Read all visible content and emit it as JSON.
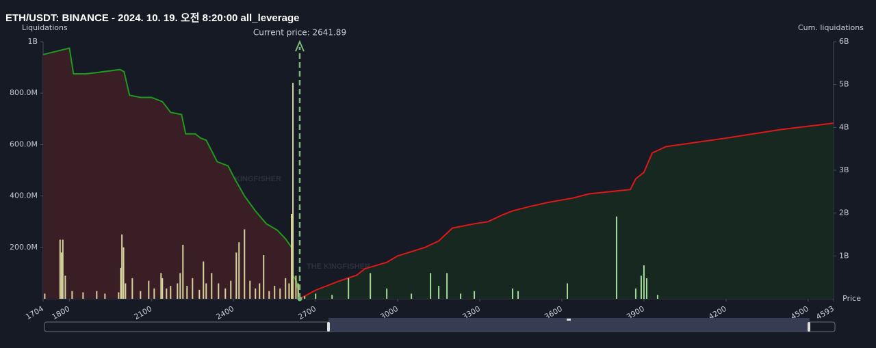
{
  "chart_data": {
    "type": "bar",
    "title": "ETH/USDT: BINANCE - 2024. 10. 19. 오전 8:20:00 all_leverage",
    "y_label": "Liquidations",
    "y2_label": "Cum. liquidations",
    "x_label": "Price",
    "annotation": "Current price: 2641.89",
    "current_price": 2641.89,
    "watermark": "THE KINGFISHER",
    "watermark_suffix": ".io",
    "xlim": [
      1704,
      4593
    ],
    "xticks": [
      1704,
      1800,
      2100,
      2400,
      2700,
      3000,
      3300,
      3600,
      3900,
      4200,
      4500,
      4593
    ],
    "ylim": [
      0,
      1000000000
    ],
    "yticks": [
      {
        "value": 200000000,
        "label": "200.0M"
      },
      {
        "value": 400000000,
        "label": "400.0M"
      },
      {
        "value": 600000000,
        "label": "600.0M"
      },
      {
        "value": 800000000,
        "label": "800.0M"
      },
      {
        "value": 1000000000,
        "label": "1B"
      }
    ],
    "y2lim": [
      0,
      6000000000
    ],
    "y2ticks": [
      {
        "value": 1000000000,
        "label": "1B"
      },
      {
        "value": 2000000000,
        "label": "2B"
      },
      {
        "value": 3000000000,
        "label": "3B"
      },
      {
        "value": 4000000000,
        "label": "4B"
      },
      {
        "value": 5000000000,
        "label": "5B"
      },
      {
        "value": 6000000000,
        "label": "6B"
      }
    ],
    "series": [
      {
        "type": "bar",
        "color": "#d6d49c",
        "x": [
          1710,
          1766,
          1771,
          1776,
          1785,
          1810,
          1850,
          1900,
          1930,
          1980,
          1988,
          1992,
          1998,
          2005,
          2030,
          2060,
          2090,
          2110,
          2135,
          2140,
          2155,
          2170,
          2195,
          2205,
          2215,
          2230,
          2250,
          2275,
          2290,
          2300,
          2320,
          2345,
          2370,
          2390,
          2410,
          2420,
          2440,
          2460,
          2480,
          2495,
          2510,
          2530,
          2550,
          2570,
          2590,
          2603,
          2612,
          2617,
          2628,
          2636
        ],
        "values": [
          20000000,
          230000000,
          180000000,
          230000000,
          90000000,
          30000000,
          25000000,
          30000000,
          20000000,
          25000000,
          120000000,
          250000000,
          200000000,
          60000000,
          80000000,
          30000000,
          70000000,
          40000000,
          100000000,
          80000000,
          40000000,
          50000000,
          60000000,
          100000000,
          210000000,
          50000000,
          80000000,
          35000000,
          145000000,
          60000000,
          100000000,
          60000000,
          40000000,
          70000000,
          180000000,
          220000000,
          270000000,
          70000000,
          40000000,
          60000000,
          170000000,
          30000000,
          50000000,
          40000000,
          80000000,
          60000000,
          330000000,
          840000000,
          90000000,
          60000000
        ]
      },
      {
        "type": "bar",
        "color": "#a3dc98",
        "x": [
          2660,
          2700,
          2760,
          2820,
          2900,
          2960,
          3050,
          3120,
          3150,
          3180,
          3230,
          3280,
          3420,
          3440,
          3620,
          3800,
          3870,
          3890,
          3900,
          3910,
          3950
        ],
        "values": [
          10000000,
          20000000,
          15000000,
          80000000,
          100000000,
          40000000,
          20000000,
          100000000,
          50000000,
          100000000,
          20000000,
          30000000,
          40000000,
          30000000,
          60000000,
          320000000,
          40000000,
          90000000,
          130000000,
          80000000,
          15000000
        ]
      },
      {
        "type": "area",
        "axis": "y2",
        "color": "#1f9a1f",
        "fill": "#3a1e26",
        "x": [
          1704,
          1800,
          1815,
          1860,
          1900,
          1985,
          2000,
          2020,
          2060,
          2100,
          2140,
          2170,
          2210,
          2225,
          2260,
          2280,
          2300,
          2340,
          2380,
          2400,
          2440,
          2480,
          2520,
          2560,
          2590,
          2612,
          2617,
          2630,
          2641.89
        ],
        "values": [
          5700000000,
          5850000000,
          5250000000,
          5250000000,
          5280000000,
          5350000000,
          5300000000,
          4750000000,
          4700000000,
          4700000000,
          4600000000,
          4350000000,
          4300000000,
          3850000000,
          3850000000,
          3750000000,
          3700000000,
          3200000000,
          3100000000,
          2850000000,
          2400000000,
          2050000000,
          1750000000,
          1600000000,
          1400000000,
          1200000000,
          550000000,
          400000000,
          0
        ]
      },
      {
        "type": "area",
        "axis": "y2",
        "color": "#e01818",
        "fill": "#162820",
        "x": [
          2641.89,
          2700,
          2780,
          2850,
          2880,
          2960,
          3000,
          3100,
          3150,
          3200,
          3280,
          3330,
          3380,
          3420,
          3480,
          3550,
          3640,
          3700,
          3850,
          3870,
          3900,
          3930,
          3980,
          4200,
          4400,
          4593
        ],
        "values": [
          0,
          200000000,
          400000000,
          550000000,
          700000000,
          850000000,
          1000000000,
          1200000000,
          1350000000,
          1650000000,
          1750000000,
          1800000000,
          1950000000,
          2050000000,
          2150000000,
          2250000000,
          2350000000,
          2450000000,
          2550000000,
          2800000000,
          2950000000,
          3400000000,
          3550000000,
          3750000000,
          3950000000,
          4100000000
        ]
      }
    ]
  }
}
